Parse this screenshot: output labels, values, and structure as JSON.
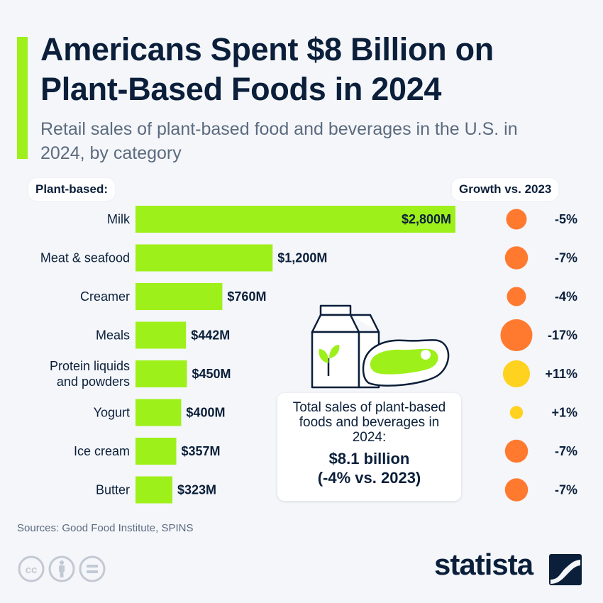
{
  "header": {
    "title": "Americans Spent $8 Billion on Plant-Based Foods in 2024",
    "subtitle": "Retail sales of plant-based food and beverages in the U.S. in 2024, by category"
  },
  "labels": {
    "category_header": "Plant-based:",
    "growth_header": "Growth vs. 2023"
  },
  "chart_data": {
    "type": "bar",
    "orientation": "horizontal",
    "title": "Americans Spent $8 Billion on Plant-Based Foods in 2024",
    "subtitle": "Retail sales of plant-based food and beverages in the U.S. in 2024, by category",
    "categories": [
      "Milk",
      "Meat & seafood",
      "Creamer",
      "Meals",
      "Protein liquids and powders",
      "Yogurt",
      "Ice cream",
      "Butter"
    ],
    "values": [
      2800,
      1200,
      760,
      442,
      450,
      400,
      357,
      323
    ],
    "value_labels": [
      "$2,800M",
      "$1,200M",
      "$760M",
      "$442M",
      "$450M",
      "$400M",
      "$357M",
      "$323M"
    ],
    "unit": "million USD",
    "xlim": [
      0,
      2800
    ],
    "grid": false,
    "growth": {
      "header": "Growth vs. 2023",
      "values": [
        -5,
        -7,
        -4,
        -17,
        11,
        1,
        -7,
        -7
      ],
      "labels": [
        "-5%",
        "-7%",
        "-4%",
        "-17%",
        "+11%",
        "+1%",
        "-7%",
        "-7%"
      ],
      "negative_color": "#ff7a2f",
      "positive_color": "#ffd21f"
    }
  },
  "total": {
    "text": "Total sales of plant-based foods and beverages in 2024:",
    "value": "$8.1 billion",
    "change": "(-4% vs. 2023)"
  },
  "footer": {
    "source": "Sources: Good Food Institute, SPINS",
    "brand": "statista"
  },
  "icons": [
    "creative-commons-icon",
    "attribution-icon",
    "no-derivatives-icon",
    "milk-carton-icon",
    "steak-icon",
    "statista-logo-icon"
  ],
  "colors": {
    "bar": "#9ef01a",
    "title": "#0b1f3a",
    "accent": "#9ef01a",
    "background": "#f4f6fa"
  }
}
